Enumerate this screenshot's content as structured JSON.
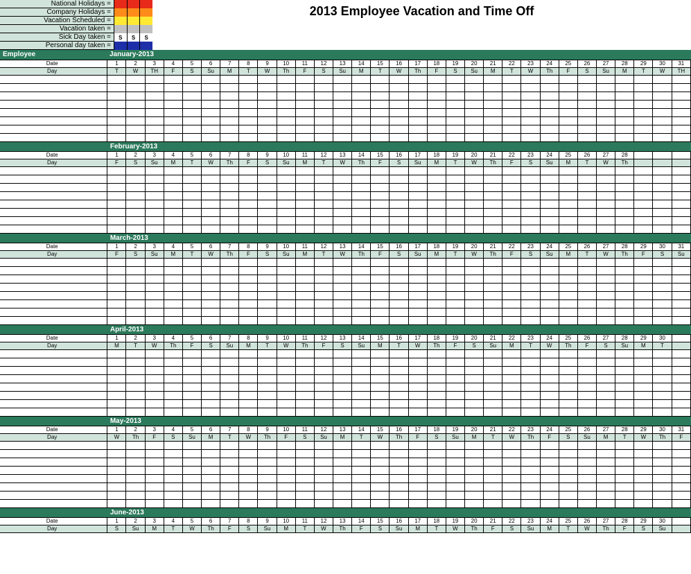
{
  "title": "2013 Employee Vacation and Time Off",
  "legend": [
    {
      "label": "National Holidays =",
      "colors": [
        "#e82a1a",
        "#e82a1a",
        "#e82a1a"
      ],
      "text": [
        "",
        "",
        ""
      ]
    },
    {
      "label": "Company Holidays =",
      "colors": [
        "#ff8c1a",
        "#ff8c1a",
        "#ff8c1a"
      ],
      "text": [
        "",
        "",
        ""
      ]
    },
    {
      "label": "Vacation Scheduled =",
      "colors": [
        "#ffe933",
        "#ffe933",
        "#ffe933"
      ],
      "text": [
        "",
        "",
        ""
      ]
    },
    {
      "label": "Vacation taken =",
      "colors": [
        "#c0c0c0",
        "#c0c0c0",
        "#c0c0c0"
      ],
      "text": [
        "",
        "",
        ""
      ]
    },
    {
      "label": "Sick Day taken =",
      "colors": [
        "#ffffff",
        "#ffffff",
        "#ffffff"
      ],
      "text": [
        "S",
        "S",
        "S"
      ]
    },
    {
      "label": "Personal day taken =",
      "colors": [
        "#1e2ea8",
        "#1e2ea8",
        "#1e2ea8"
      ],
      "text": [
        "",
        "",
        ""
      ]
    }
  ],
  "header": {
    "employee": "Employee",
    "date_label": "Date",
    "day_label": "Day"
  },
  "colors": {
    "header_green": "#2b7a5b",
    "legend_bg": "#d1e4dc",
    "day_row_bg": "#d1e4dc",
    "border": "#000000"
  },
  "months": [
    {
      "name": "January-2013",
      "days": 31,
      "dates": [
        "1",
        "2",
        "3",
        "4",
        "5",
        "6",
        "7",
        "8",
        "9",
        "10",
        "11",
        "12",
        "13",
        "14",
        "15",
        "16",
        "17",
        "18",
        "19",
        "20",
        "21",
        "22",
        "23",
        "24",
        "25",
        "26",
        "27",
        "28",
        "29",
        "30",
        "31"
      ],
      "dow": [
        "T",
        "W",
        "TH",
        "F",
        "S",
        "Su",
        "M",
        "T",
        "W",
        "Th",
        "F",
        "S",
        "Su",
        "M",
        "T",
        "W",
        "Th",
        "F",
        "S",
        "Su",
        "M",
        "T",
        "W",
        "Th",
        "F",
        "S",
        "Su",
        "M",
        "T",
        "W",
        "TH"
      ],
      "body_rows": 8,
      "first_after_emp": true
    },
    {
      "name": "February-2013",
      "days": 28,
      "dates": [
        "1",
        "2",
        "3",
        "4",
        "5",
        "6",
        "7",
        "8",
        "9",
        "10",
        "11",
        "12",
        "13",
        "14",
        "15",
        "16",
        "17",
        "18",
        "19",
        "20",
        "21",
        "22",
        "23",
        "24",
        "25",
        "26",
        "27",
        "28"
      ],
      "dow": [
        "F",
        "S",
        "Su",
        "M",
        "T",
        "W",
        "Th",
        "F",
        "S",
        "Su",
        "M",
        "T",
        "W",
        "Th",
        "F",
        "S",
        "Su",
        "M",
        "T",
        "W",
        "Th",
        "F",
        "S",
        "Su",
        "M",
        "T",
        "W",
        "Th"
      ],
      "body_rows": 8
    },
    {
      "name": "March-2013",
      "days": 31,
      "dates": [
        "1",
        "2",
        "3",
        "4",
        "5",
        "6",
        "7",
        "8",
        "9",
        "10",
        "11",
        "12",
        "13",
        "14",
        "15",
        "16",
        "17",
        "18",
        "19",
        "20",
        "21",
        "22",
        "23",
        "24",
        "25",
        "26",
        "27",
        "28",
        "29",
        "30",
        "31"
      ],
      "dow": [
        "F",
        "S",
        "Su",
        "M",
        "T",
        "W",
        "Th",
        "F",
        "S",
        "Su",
        "M",
        "T",
        "W",
        "Th",
        "F",
        "S",
        "Su",
        "M",
        "T",
        "W",
        "Th",
        "F",
        "S",
        "Su",
        "M",
        "T",
        "W",
        "Th",
        "F",
        "S",
        "Su"
      ],
      "body_rows": 8
    },
    {
      "name": "April-2013",
      "days": 30,
      "dates": [
        "1",
        "2",
        "3",
        "4",
        "5",
        "6",
        "7",
        "8",
        "9",
        "10",
        "11",
        "12",
        "13",
        "14",
        "15",
        "16",
        "17",
        "18",
        "19",
        "20",
        "21",
        "22",
        "23",
        "24",
        "25",
        "26",
        "27",
        "28",
        "29",
        "30"
      ],
      "dow": [
        "M",
        "T",
        "W",
        "Th",
        "F",
        "S",
        "Su",
        "M",
        "T",
        "W",
        "Th",
        "F",
        "S",
        "Su",
        "M",
        "T",
        "W",
        "Th",
        "F",
        "S",
        "Su",
        "M",
        "T",
        "W",
        "Th",
        "F",
        "S",
        "Su",
        "M",
        "T"
      ],
      "body_rows": 8
    },
    {
      "name": "May-2013",
      "days": 31,
      "dates": [
        "1",
        "2",
        "3",
        "4",
        "5",
        "6",
        "7",
        "8",
        "9",
        "10",
        "11",
        "12",
        "13",
        "14",
        "15",
        "16",
        "17",
        "18",
        "19",
        "20",
        "21",
        "22",
        "23",
        "24",
        "25",
        "26",
        "27",
        "28",
        "29",
        "30",
        "31"
      ],
      "dow": [
        "W",
        "Th",
        "F",
        "S",
        "Su",
        "M",
        "T",
        "W",
        "Th",
        "F",
        "S",
        "Su",
        "M",
        "T",
        "W",
        "Th",
        "F",
        "S",
        "Su",
        "M",
        "T",
        "W",
        "Th",
        "F",
        "S",
        "Su",
        "M",
        "T",
        "W",
        "Th",
        "F"
      ],
      "body_rows": 8
    },
    {
      "name": "June-2013",
      "days": 30,
      "dates": [
        "1",
        "2",
        "3",
        "4",
        "5",
        "6",
        "7",
        "8",
        "9",
        "10",
        "11",
        "12",
        "13",
        "14",
        "15",
        "16",
        "17",
        "18",
        "19",
        "20",
        "21",
        "22",
        "23",
        "24",
        "25",
        "26",
        "27",
        "28",
        "29",
        "30"
      ],
      "dow": [
        "S",
        "Su",
        "M",
        "T",
        "W",
        "Th",
        "F",
        "S",
        "Su",
        "M",
        "T",
        "W",
        "Th",
        "F",
        "S",
        "Su",
        "M",
        "T",
        "W",
        "Th",
        "F",
        "S",
        "Su",
        "M",
        "T",
        "W",
        "Th",
        "F",
        "S",
        "Su"
      ],
      "body_rows": 0
    }
  ],
  "max_days": 31
}
